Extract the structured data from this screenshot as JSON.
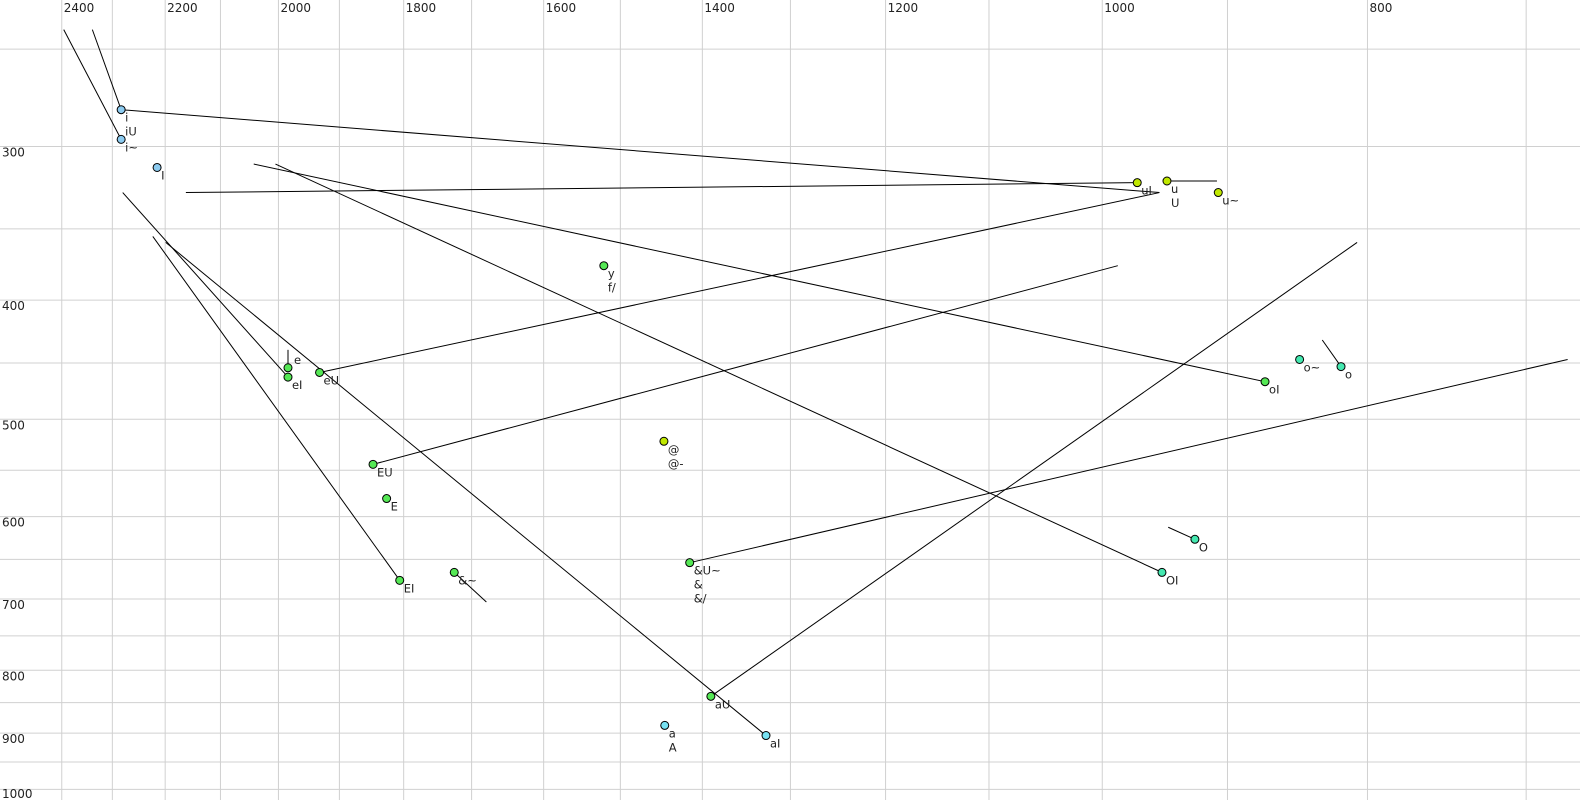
{
  "chart_data": {
    "type": "scatter",
    "title": "",
    "xlabel": "",
    "ylabel": "",
    "x_scale": "log",
    "y_scale": "log",
    "x_reversed": true,
    "xlim": [
      2528,
      669
    ],
    "ylim": [
      228,
      1020
    ],
    "grid": true,
    "x_ticks": [
      2400,
      2200,
      2000,
      1800,
      1600,
      1400,
      1200,
      1000,
      800
    ],
    "y_ticks": [
      300,
      400,
      500,
      600,
      700,
      800,
      900,
      1000
    ],
    "x_grid": [
      2400,
      2300,
      2200,
      2100,
      2000,
      1900,
      1800,
      1700,
      1600,
      1500,
      1400,
      1300,
      1200,
      1100,
      1000,
      900,
      800,
      700
    ],
    "y_grid": [
      250,
      300,
      350,
      400,
      450,
      500,
      550,
      600,
      650,
      700,
      750,
      800,
      850,
      900,
      950,
      1000
    ],
    "colors": {
      "blue": "#8ccbf0",
      "cyan": "#78e2f2",
      "green": "#55e855",
      "lime": "#c0e800",
      "teal": "#44e8b0",
      "grid": "#d0d0d0",
      "line": "#000000"
    },
    "points": [
      {
        "labels": [
          "i",
          "iU"
        ],
        "f2": 2283,
        "f1": 280,
        "color": "blue"
      },
      {
        "labels": [
          "i~"
        ],
        "f2": 2283,
        "f1": 296,
        "color": "blue"
      },
      {
        "labels": [
          "I"
        ],
        "f2": 2215,
        "f1": 312,
        "color": "blue"
      },
      {
        "labels": [
          "e"
        ],
        "f2": 1984,
        "f1": 454,
        "color": "green"
      },
      {
        "labels": [
          "eI"
        ],
        "f2": 1984,
        "f1": 462,
        "color": "green"
      },
      {
        "labels": [
          "eU"
        ],
        "f2": 1932,
        "f1": 458,
        "color": "green"
      },
      {
        "labels": [
          "EU"
        ],
        "f2": 1847,
        "f1": 544,
        "color": "green"
      },
      {
        "labels": [
          "E"
        ],
        "f2": 1826,
        "f1": 580,
        "color": "green"
      },
      {
        "labels": [
          "EI"
        ],
        "f2": 1806,
        "f1": 676,
        "color": "green"
      },
      {
        "labels": [
          "&~"
        ],
        "f2": 1725,
        "f1": 666,
        "color": "green"
      },
      {
        "labels": [
          "y",
          "f/"
        ],
        "f2": 1521,
        "f1": 375,
        "color": "green"
      },
      {
        "labels": [
          "@",
          "@-"
        ],
        "f2": 1446,
        "f1": 521,
        "color": "lime"
      },
      {
        "labels": [
          "&U~",
          "&",
          "&/"
        ],
        "f2": 1415,
        "f1": 654,
        "color": "green"
      },
      {
        "labels": [
          "aU"
        ],
        "f2": 1390,
        "f1": 840,
        "color": "green"
      },
      {
        "labels": [
          "a",
          "A"
        ],
        "f2": 1445,
        "f1": 887,
        "color": "cyan"
      },
      {
        "labels": [
          "aI"
        ],
        "f2": 1327,
        "f1": 904,
        "color": "cyan"
      },
      {
        "labels": [
          "uI"
        ],
        "f2": 971,
        "f1": 321,
        "color": "lime"
      },
      {
        "labels": [
          "u",
          "U"
        ],
        "f2": 947,
        "f1": 320,
        "color": "lime"
      },
      {
        "labels": [
          "u~"
        ],
        "f2": 907,
        "f1": 327,
        "color": "lime"
      },
      {
        "labels": [
          "oI"
        ],
        "f2": 872,
        "f1": 466,
        "color": "green"
      },
      {
        "labels": [
          "o~"
        ],
        "f2": 847,
        "f1": 447,
        "color": "teal"
      },
      {
        "labels": [
          "o"
        ],
        "f2": 818,
        "f1": 453,
        "color": "teal"
      },
      {
        "labels": [
          "O"
        ],
        "f2": 925,
        "f1": 626,
        "color": "teal"
      },
      {
        "labels": [
          "OI"
        ],
        "f2": 951,
        "f1": 666,
        "color": "teal"
      }
    ],
    "segments": [
      [
        [
          2396,
          241
        ],
        [
          2283,
          296
        ]
      ],
      [
        [
          2339,
          241
        ],
        [
          2283,
          280
        ]
      ],
      [
        [
          2283,
          280
        ],
        [
          953,
          327
        ]
      ],
      [
        [
          2162,
          327
        ],
        [
          971,
          321
        ]
      ],
      [
        [
          2042,
          310
        ],
        [
          872,
          466
        ]
      ],
      [
        [
          2005,
          310
        ],
        [
          951,
          666
        ]
      ],
      [
        [
          2280,
          327
        ],
        [
          1984,
          462
        ]
      ],
      [
        [
          2223,
          355
        ],
        [
          1806,
          676
        ]
      ],
      [
        [
          2199,
          359
        ],
        [
          1327,
          904
        ]
      ],
      [
        [
          1932,
          458
        ],
        [
          953,
          327
        ]
      ],
      [
        [
          1847,
          544
        ],
        [
          987,
          375
        ]
      ],
      [
        [
          1725,
          666
        ],
        [
          1679,
          704
        ]
      ],
      [
        [
          1415,
          654
        ],
        [
          676,
          447
        ]
      ],
      [
        [
          1390,
          840
        ],
        [
          807,
          359
        ]
      ],
      [
        [
          947,
          320
        ],
        [
          908,
          320
        ]
      ],
      [
        [
          818,
          453
        ],
        [
          831,
          431
        ]
      ],
      [
        [
          925,
          626
        ],
        [
          946,
          612
        ]
      ],
      [
        [
          1984,
          454
        ],
        [
          1984,
          439
        ]
      ]
    ]
  }
}
